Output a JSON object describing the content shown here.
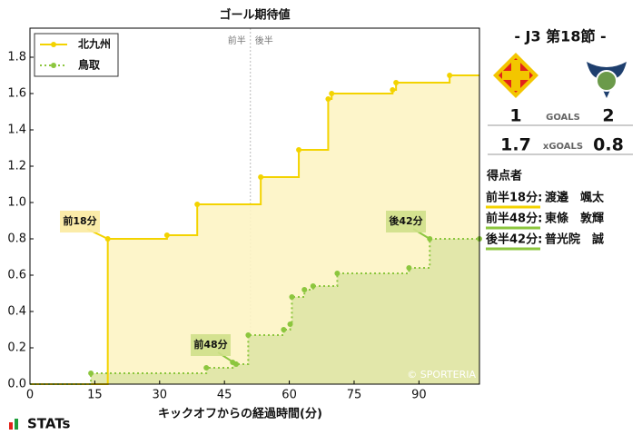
{
  "chart_data": {
    "type": "step",
    "title": "ゴール期待値",
    "x_label": "キックオフからの経過時間(分)",
    "xlim": [
      0,
      104
    ],
    "xticks": [
      0,
      15,
      30,
      45,
      60,
      75,
      90
    ],
    "ylim": [
      0,
      1.96
    ],
    "yticks": [
      {
        "value": 0,
        "label": "0.0"
      },
      0.2,
      0.4,
      0.6,
      0.8,
      {
        "value": 1,
        "label": "1.0"
      },
      1.2,
      1.4,
      1.6,
      1.8
    ],
    "halftime": 51,
    "halftime_labels": [
      "前半",
      "後半"
    ],
    "series": [
      {
        "name": "北九州",
        "color": "#f3d300",
        "fill": "#fdf4c4",
        "dash": false,
        "x": [
          18,
          31.7,
          38.7,
          53.4,
          62.2,
          69,
          69.8,
          83.9,
          84.7,
          97.1
        ],
        "values": [
          0.8,
          0.82,
          0.99,
          1.14,
          1.29,
          1.57,
          1.6,
          1.62,
          1.66,
          1.7
        ]
      },
      {
        "name": "鳥取",
        "color": "#8cc63e",
        "fill": "#dfe6a6",
        "dash": true,
        "x": [
          14.1,
          40.8,
          46.9,
          47.7,
          50.5,
          58.7,
          60.2,
          60.6,
          63.5,
          65.5,
          71.1,
          87.7,
          92.5,
          104
        ],
        "values": [
          0.06,
          0.09,
          0.12,
          0.11,
          0.27,
          0.3,
          0.33,
          0.48,
          0.52,
          0.54,
          0.61,
          0.64,
          0.8,
          0.8
        ]
      }
    ],
    "annotations": [
      "前18分",
      "前48分",
      "後42分"
    ],
    "watermark": "© SPORTERIA"
  },
  "panel": {
    "match": "- J3 第18節 -",
    "goals": {
      "home": 1,
      "label": "GOALS",
      "away": 2
    },
    "xg": {
      "home": 1.7,
      "label": "xGOALS",
      "away": 0.8
    },
    "scorers_title": "得点者",
    "scorers": [
      {
        "time": "前半18分:",
        "name": "渡邉　颯太"
      },
      {
        "time": "前半48分:",
        "name": "東條　敦輝"
      },
      {
        "time": "後半42分:",
        "name": "普光院　誠"
      }
    ]
  },
  "footer": {
    "logo": "STATs"
  }
}
